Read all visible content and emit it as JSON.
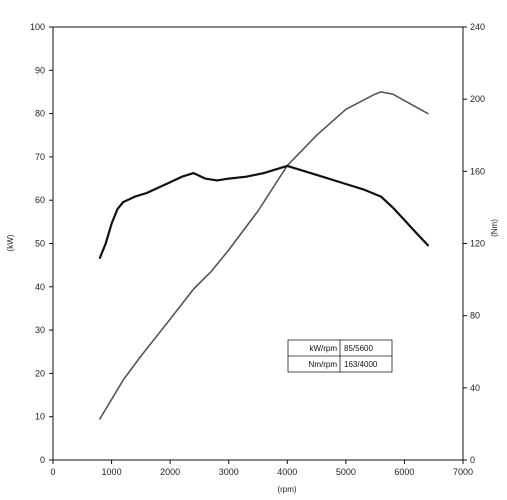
{
  "chart_data": {
    "type": "line",
    "xlabel": "(rpm)",
    "ylabel_left": "(kW)",
    "ylabel_right": "(Nm)",
    "xlim": [
      0,
      7000
    ],
    "ylim_left": [
      0,
      100
    ],
    "ylim_right": [
      0,
      240
    ],
    "xticks": [
      0,
      1000,
      2000,
      3000,
      4000,
      5000,
      6000,
      7000
    ],
    "yticks_left": [
      0,
      10,
      20,
      30,
      40,
      50,
      60,
      70,
      80,
      90,
      100
    ],
    "yticks_right": [
      0,
      40,
      80,
      120,
      160,
      200,
      240
    ],
    "grid": false,
    "legend": "none",
    "series": [
      {
        "axis": "left",
        "color": "#555555",
        "x": [
          800,
          1000,
          1200,
          1500,
          2000,
          2400,
          2700,
          3000,
          3500,
          4000,
          4500,
          5000,
          5500,
          5600,
          5800,
          6000,
          6200,
          6400
        ],
        "values": [
          9.5,
          14,
          18.5,
          24,
          32.5,
          39.5,
          43.5,
          48.5,
          57.5,
          68,
          75,
          81,
          84.5,
          85,
          84.5,
          83,
          81.5,
          80
        ]
      },
      {
        "axis": "right",
        "color": "#111111",
        "x": [
          800,
          900,
          1000,
          1100,
          1200,
          1400,
          1600,
          1800,
          2000,
          2200,
          2400,
          2600,
          2800,
          3000,
          3300,
          3600,
          3900,
          4000,
          4300,
          4600,
          5000,
          5300,
          5600,
          5800,
          6000,
          6200,
          6400
        ],
        "values": [
          112,
          120,
          131,
          139,
          143,
          146,
          148,
          151,
          154,
          157,
          159,
          156,
          155,
          156,
          157,
          159,
          162,
          163,
          160,
          157,
          153,
          150,
          146,
          140,
          133,
          126,
          119
        ]
      }
    ],
    "info_box": [
      {
        "label": "kW/rpm",
        "value": "85/5600"
      },
      {
        "label": "Nm/rpm",
        "value": "163/4000"
      }
    ]
  }
}
